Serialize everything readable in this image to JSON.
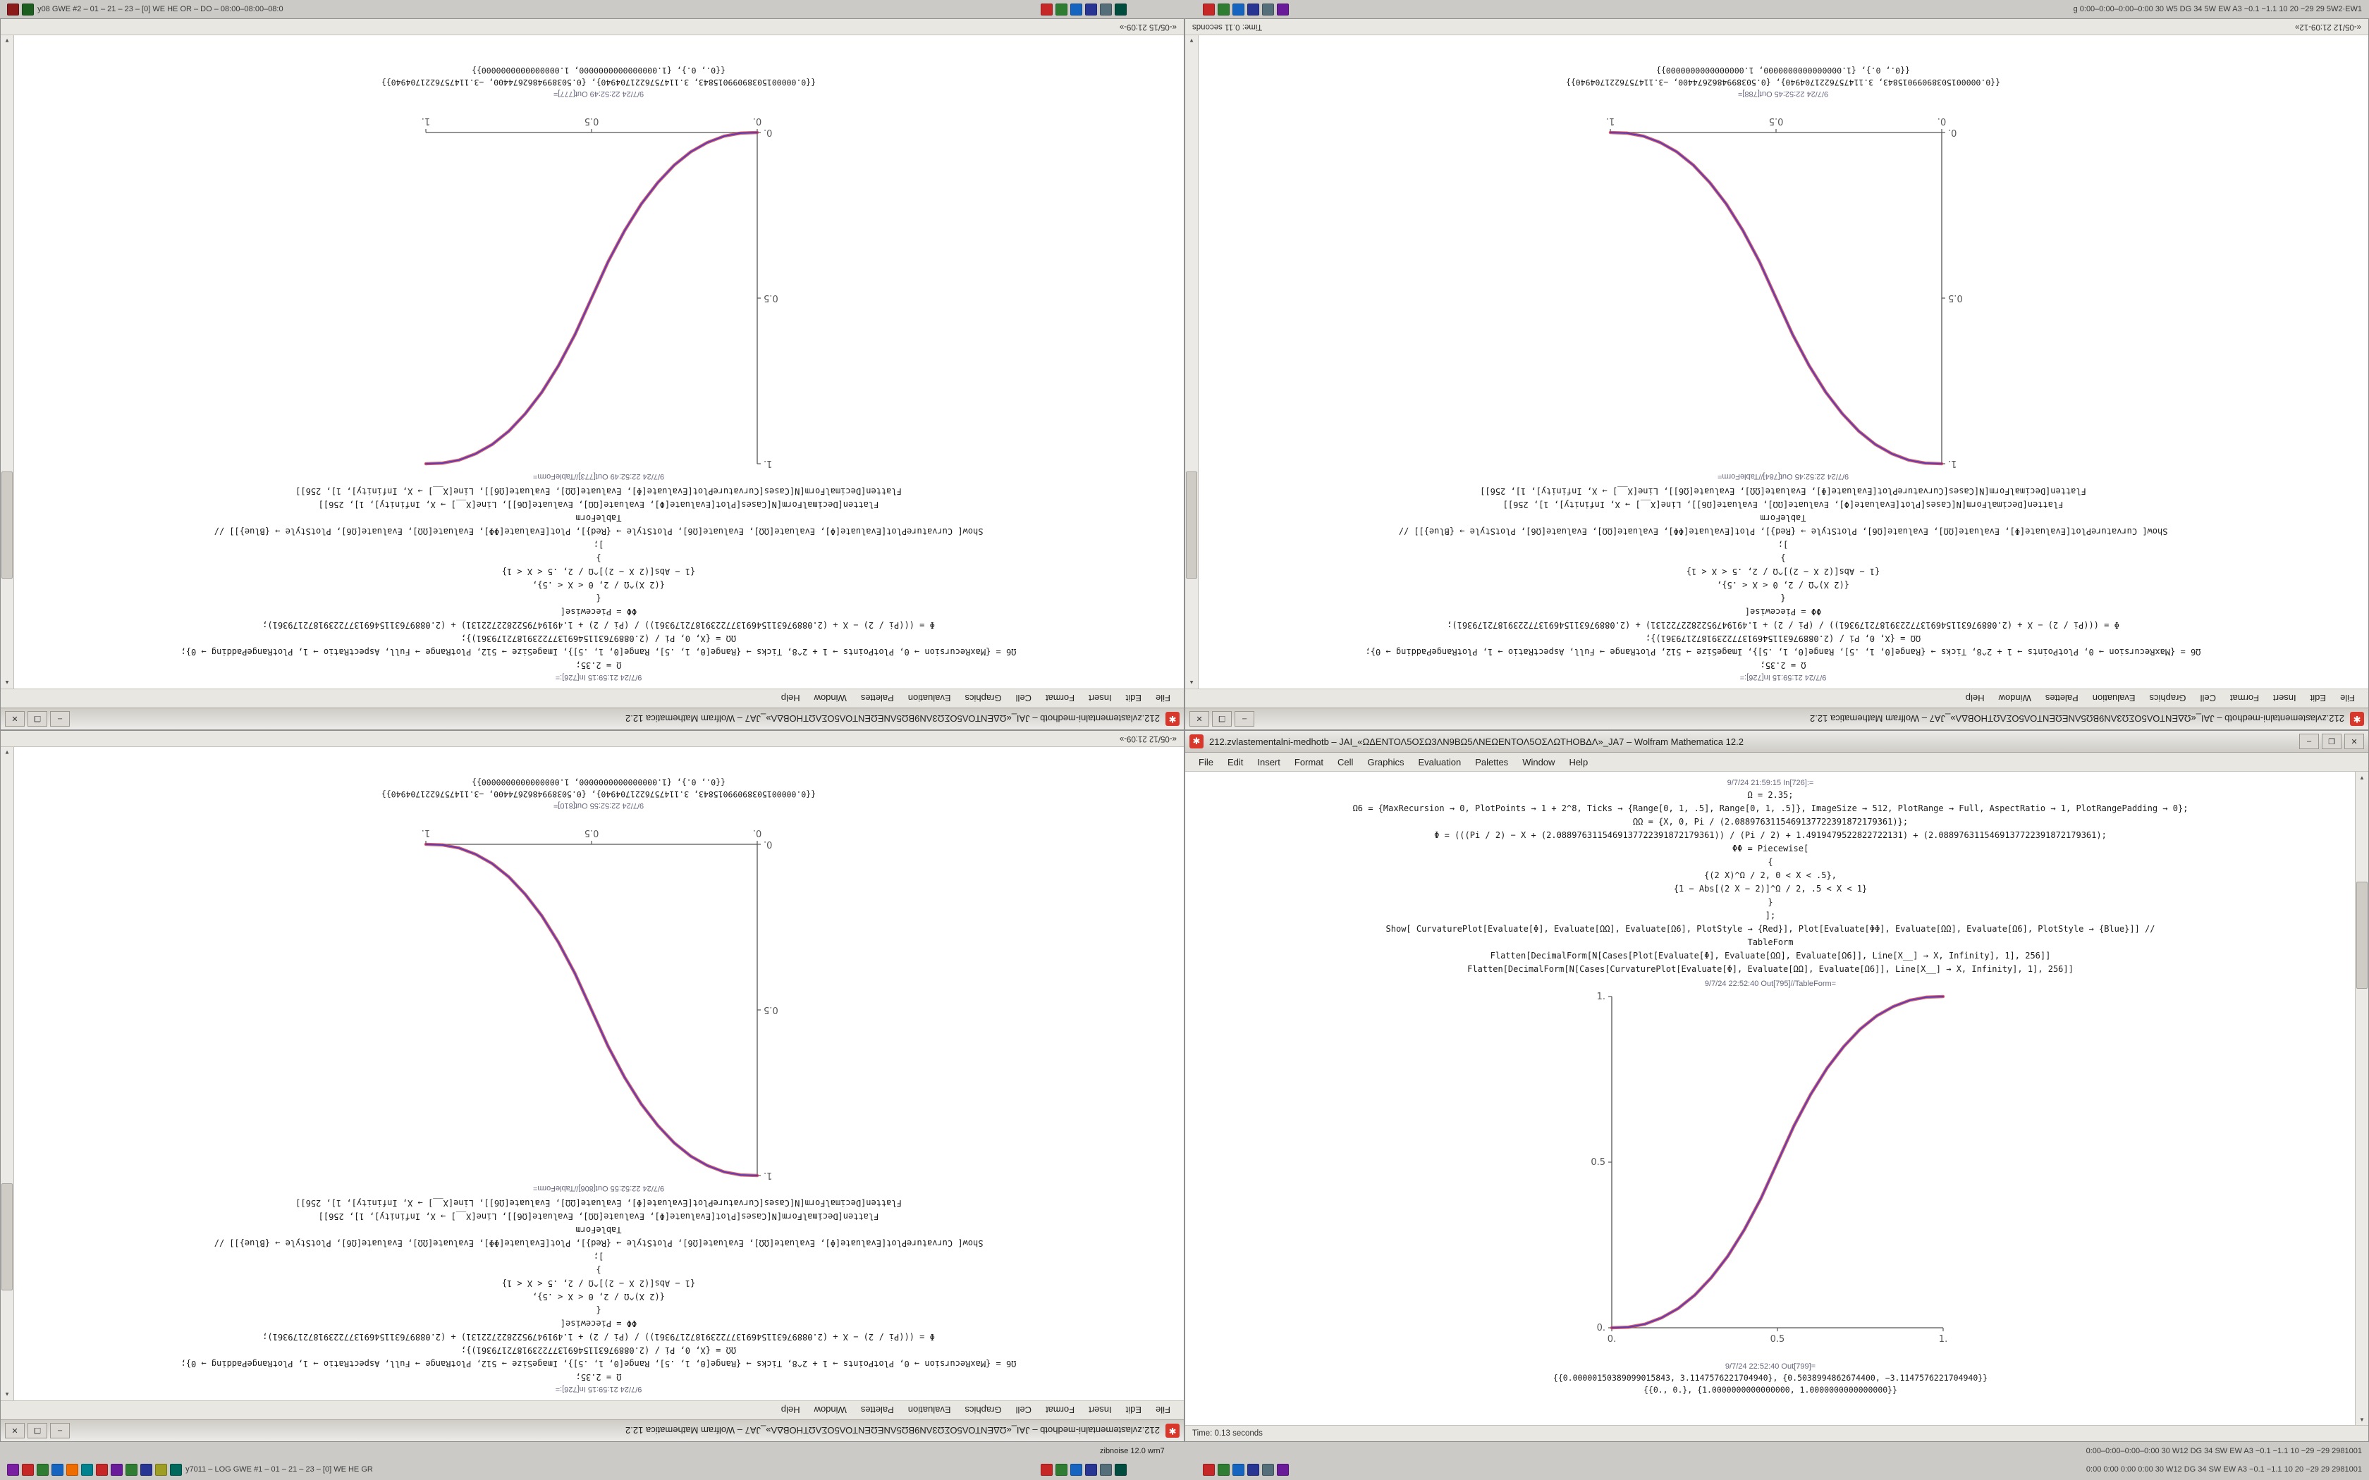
{
  "app": {
    "name": "Wolfram Mathematica",
    "version": "12.2"
  },
  "top_bar": {
    "left_icon_colors": [
      "#8b1a1a",
      "#1b5e20"
    ],
    "left_text": "y08 GWE #2 – 01 – 21 – 23 – [0] WE HE OR – DO – 08:00–08:00–08:0",
    "icon_group_left": [
      "#c62828",
      "#2e7d32",
      "#1565c0",
      "#283593",
      "#546e7a",
      "#004d40"
    ],
    "icon_group_right": [
      "#c62828",
      "#2e7d32",
      "#1565c0",
      "#283593",
      "#546e7a",
      "#6a1b9a"
    ],
    "right_text": "g  0:00–0:00–0:00–0:00  30  W5  DG  34  5W  EW  A3  −0.1  −1.1  10  20  −29  29  5W2·EW1"
  },
  "bottom_bar": {
    "item_label": "zibnoise 12.0 wrn7",
    "right_text_row1": "0:00–0:00–0:00–0:00  30  W12  DG  34  SW  EW  A3  −0.1  −1.1  10  −29  −29  2981001",
    "left_icon_colors": [
      "#7b1fa2",
      "#c62828",
      "#2e7d32",
      "#1565c0",
      "#ef6c00",
      "#00838f",
      "#c62828",
      "#6a1b9a",
      "#2e7d32",
      "#283593",
      "#9e9d24",
      "#00695c"
    ],
    "left_text": "y7011 – LOG GWE #1 – 01 – 21 – 23 – [0] WE HE GR",
    "icon_group_left": [
      "#c62828",
      "#2e7d32",
      "#1565c0",
      "#283593",
      "#546e7a",
      "#004d40"
    ],
    "icon_group_right": [
      "#c62828",
      "#2e7d32",
      "#1565c0",
      "#283593",
      "#546e7a",
      "#6a1b9a"
    ],
    "right_text_row2": "0:00 0:00 0:00 0:00  30  W12  DG  34  SW  EW  A3  −0.1  −1.1  10  20  −29  29  2981001"
  },
  "menu": {
    "items": [
      "File",
      "Edit",
      "Insert",
      "Format",
      "Cell",
      "Graphics",
      "Evaluation",
      "Palettes",
      "Window",
      "Help"
    ]
  },
  "window_controls": {
    "minimize": "–",
    "maximize": "❒",
    "close": "✕"
  },
  "notebook": {
    "in_label": "9/7/24 21:59:15 In[726]:=",
    "code_lines": [
      "Ω = 2.35;",
      "Ω6 = {MaxRecursion → 0, PlotPoints → 1 + 2^8, Ticks → {Range[0, 1, .5], Range[0, 1, .5]}, ImageSize → 512, PlotRange → Full, AspectRatio → 1, PlotRangePadding → 0};",
      "ΩΩ = {X, 0, Pi / (2.0889763115469137722391872179361)};",
      "Φ = (((Pi / 2) − X + (2.0889763115469137722391872179361)) / (Pi / 2) + 1.4919479522822722131) + (2.0889763115469137722391872179361);",
      "ΦΦ = Piecewise[",
      "{",
      "{(2 X)^Ω / 2, 0 < X < .5},",
      "{1 − Abs[(2 X − 2)]^Ω / 2, .5 < X < 1}",
      "}",
      "];",
      "Show[ CurvaturePlot[Evaluate[Φ], Evaluate[ΩΩ], Evaluate[Ω6], PlotStyle → {Red}], Plot[Evaluate[ΦΦ], Evaluate[ΩΩ], Evaluate[Ω6], PlotStyle → {Blue}]] //",
      "TableForm",
      "Flatten[DecimalForm[N[Cases[Plot[Evaluate[Φ], Evaluate[ΩΩ], Evaluate[Ω6]], Line[X__] → X, Infinity], 1], 256]]",
      "Flatten[DecimalForm[N[Cases[CurvaturePlot[Evaluate[Φ], Evaluate[ΩΩ], Evaluate[Ω6]], Line[X__] → X, Infinity], 1], 256]]"
    ]
  },
  "windows": [
    {
      "id": "top-left",
      "title": "212.zvlastementalni-medhotb – JAI_«ΩΔΕΝΤΟΛ5ΟΣΩ3ΛΝ9ΒΩ5ΛΝΕΩΕΝΤΟΛ5ΟΣΛΩΤΗΟΒΔΛ»_JA7 – Wolfram Mathematica 12.2",
      "out_plot_label": "9/7/24 22:52:49 Out[773]//TableForm=",
      "out_data_label": "9/7/24 22:52:49 Out[777]=",
      "output_rows": [
        "{{0.00000150389099015843, 3.1147576221704940}, {0.5038994862674400, −3.1147576221704940}}",
        "{{0., 0.}, {1.0000000000000000, 1.0000000000000000}}"
      ],
      "status_left": "«-05/15 21:09-»",
      "status_right": ""
    },
    {
      "id": "top-right",
      "title": "212.zvlastementalni-medhotb – JAI_«ΩΔΕΝΤΟΛ5ΟΣΩ3ΛΝ9ΒΩ5ΛΝΕΩΕΝΤΟΛ5ΟΣΛΩΤΗΟΒΔΛ»_JA7 – Wolfram Mathematica 12.2",
      "out_plot_label": "9/7/24 22:52:45 Out[784]//TableForm=",
      "out_data_label": "9/7/24 22:52:45 Out[788]=",
      "output_rows": [
        "{{0.00000150389099015843, 3.1147576221704940}, {0.5038994862674400, −3.1147576221704940}}",
        "{{0., 0.}, {1.0000000000000000, 1.0000000000000000}}"
      ],
      "status_left": "«-05/12 21:09-12»",
      "status_right": "Time: 0.11 seconds"
    },
    {
      "id": "bottom-left",
      "title": "212.zvlastementalni-medhotb – JAI_«ΩΔΕΝΤΟΛ5ΟΣΩ3ΛΝ9ΒΩ5ΛΝΕΩΕΝΤΟΛ5ΟΣΛΩΤΗΟΒΔΛ»_JA7 – Wolfram Mathematica 12.2",
      "out_plot_label": "9/7/24 22:52:55 Out[806]//TableForm=",
      "out_data_label": "9/7/24 22:52:55 Out[810]=",
      "output_rows": [
        "{{0.00000150389099015843, 3.1147576221704940}, {0.5038994862674400, −3.1147576221704940}}",
        "{{0., 0.}, {1.0000000000000000, 1.0000000000000000}}"
      ],
      "status_left": "«-05/12 21:09-»",
      "status_right": ""
    },
    {
      "id": "bottom-right",
      "title": "212.zvlastementalni-medhotb – JAI_«ΩΔΕΝΤΟΛ5ΟΣΩ3ΛΝ9ΒΩ5ΛΝΕΩΕΝΤΟΛ5ΟΣΛΩΤΗΟΒΔΛ»_JA7 – Wolfram Mathematica 12.2",
      "out_plot_label": "9/7/24 22:52:40 Out[795]//TableForm=",
      "out_data_label": "9/7/24 22:52:40 Out[799]=",
      "output_rows": [
        "{{0.00000150389099015843, 3.1147576221704940}, {0.5038994862674400, −3.1147576221704940}}",
        "{{0., 0.}, {1.0000000000000000, 1.0000000000000000}}"
      ],
      "status_left": "Time: 0.13 seconds",
      "status_right": ""
    }
  ],
  "chart_data": {
    "type": "line",
    "title": "",
    "xlabel": "",
    "ylabel": "",
    "xlim": [
      0,
      1
    ],
    "ylim": [
      0,
      1
    ],
    "grid": false,
    "legend": "none",
    "note": "CurvaturePlot (Red) and Plot (Blue) curves overlap, appearing purple",
    "axis_color": "#555555",
    "x": [
      0,
      0.05,
      0.1,
      0.15,
      0.2,
      0.25,
      0.3,
      0.35,
      0.4,
      0.45,
      0.5,
      0.55,
      0.6,
      0.65,
      0.7,
      0.75,
      0.8,
      0.85,
      0.9,
      0.95,
      1
    ],
    "curves": {
      "ascending": [
        0,
        0.002,
        0.011,
        0.03,
        0.058,
        0.098,
        0.151,
        0.216,
        0.296,
        0.39,
        0.5,
        0.61,
        0.704,
        0.784,
        0.849,
        0.902,
        0.942,
        0.97,
        0.989,
        0.998,
        1
      ],
      "descending": [
        1,
        0.998,
        0.989,
        0.97,
        0.942,
        0.902,
        0.849,
        0.784,
        0.704,
        0.61,
        0.5,
        0.39,
        0.296,
        0.216,
        0.151,
        0.098,
        0.058,
        0.03,
        0.011,
        0.002,
        0
      ]
    },
    "xticks": [
      0,
      0.5,
      1
    ],
    "yticks": [
      0,
      0.5,
      1
    ],
    "xtick_labels": [
      "0.",
      "0.5",
      "1."
    ],
    "ytick_labels": [
      "0.",
      "0.5",
      "1."
    ],
    "series": [
      {
        "name": "CurvaturePlot",
        "style": "Red",
        "color": "#d23a3a"
      },
      {
        "name": "Plot",
        "style": "Blue",
        "color": "#5a3bbf"
      }
    ],
    "windows": [
      {
        "id": "top-left",
        "curve": "ascending"
      },
      {
        "id": "top-right",
        "curve": "descending"
      },
      {
        "id": "bottom-left",
        "curve": "descending"
      },
      {
        "id": "bottom-right",
        "curve": "ascending"
      }
    ]
  }
}
